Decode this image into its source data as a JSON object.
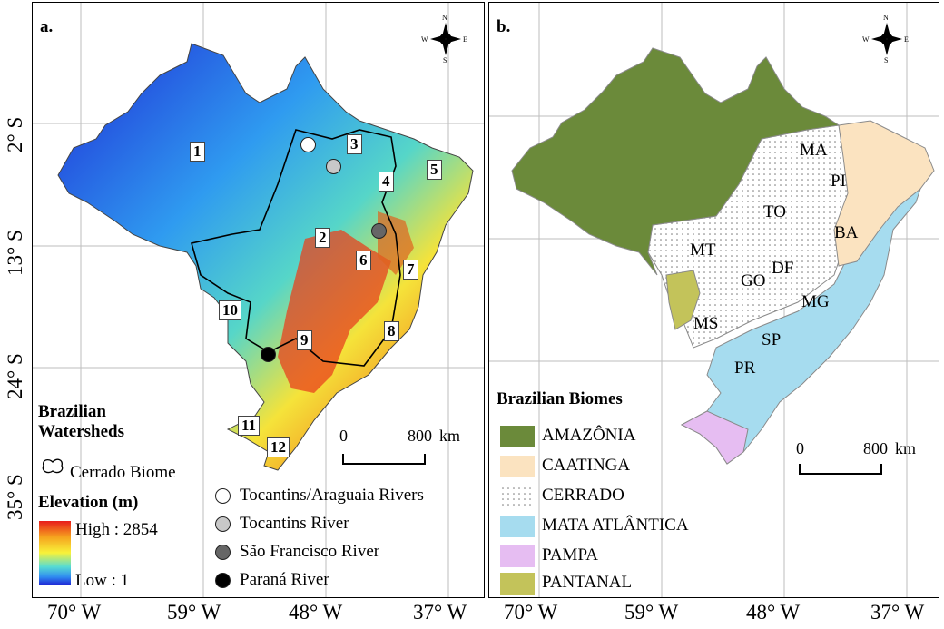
{
  "panel_a": {
    "label": "a.",
    "watershed_numbers": [
      "1",
      "2",
      "3",
      "4",
      "5",
      "6",
      "7",
      "8",
      "9",
      "10",
      "11",
      "12"
    ],
    "legend_title": "Brazilian Watersheds",
    "cerrado_label": "Cerrado Biome",
    "elevation_title": "Elevation (m)",
    "elevation_high": "High : 2854",
    "elevation_low": "Low : 1",
    "river_points": [
      {
        "label": "Tocantins/Araguaia Rivers",
        "color": "#ffffff"
      },
      {
        "label": "Tocantins River",
        "color": "#c8c8c8"
      },
      {
        "label": "São Francisco River",
        "color": "#666666"
      },
      {
        "label": "Paraná River",
        "color": "#000000"
      }
    ],
    "scale": {
      "start": "0",
      "end": "800",
      "unit": "km"
    },
    "elevation_colors": [
      "#1f2bd6",
      "#2f9bf0",
      "#56d6c8",
      "#b8e66a",
      "#f5e33a",
      "#f28a1f",
      "#d81e1e"
    ]
  },
  "panel_b": {
    "label": "b.",
    "legend_title": "Brazilian Biomes",
    "biomes": [
      {
        "label": "AMAZÔNIA",
        "color": "#6b8a3a"
      },
      {
        "label": "CAATINGA",
        "color": "#fbe3c0"
      },
      {
        "label": "CERRADO",
        "color": "#ffffff"
      },
      {
        "label": "MATA ATLÂNTICA",
        "color": "#a6dcef"
      },
      {
        "label": "PAMPA",
        "color": "#e6bdf2"
      },
      {
        "label": "PANTANAL",
        "color": "#c3c35a"
      }
    ],
    "states": [
      "MA",
      "PI",
      "TO",
      "BA",
      "MT",
      "DF",
      "GO",
      "MG",
      "MS",
      "SP",
      "PR"
    ],
    "scale": {
      "start": "0",
      "end": "800",
      "unit": "km"
    }
  },
  "compass": {
    "n": "N",
    "s": "S",
    "e": "E",
    "w": "W"
  },
  "axes": {
    "x_ticks": [
      "70° W",
      "59° W",
      "48° W",
      "37° W"
    ],
    "y_ticks": [
      "2° S",
      "13° S",
      "24° S",
      "35° S"
    ]
  }
}
